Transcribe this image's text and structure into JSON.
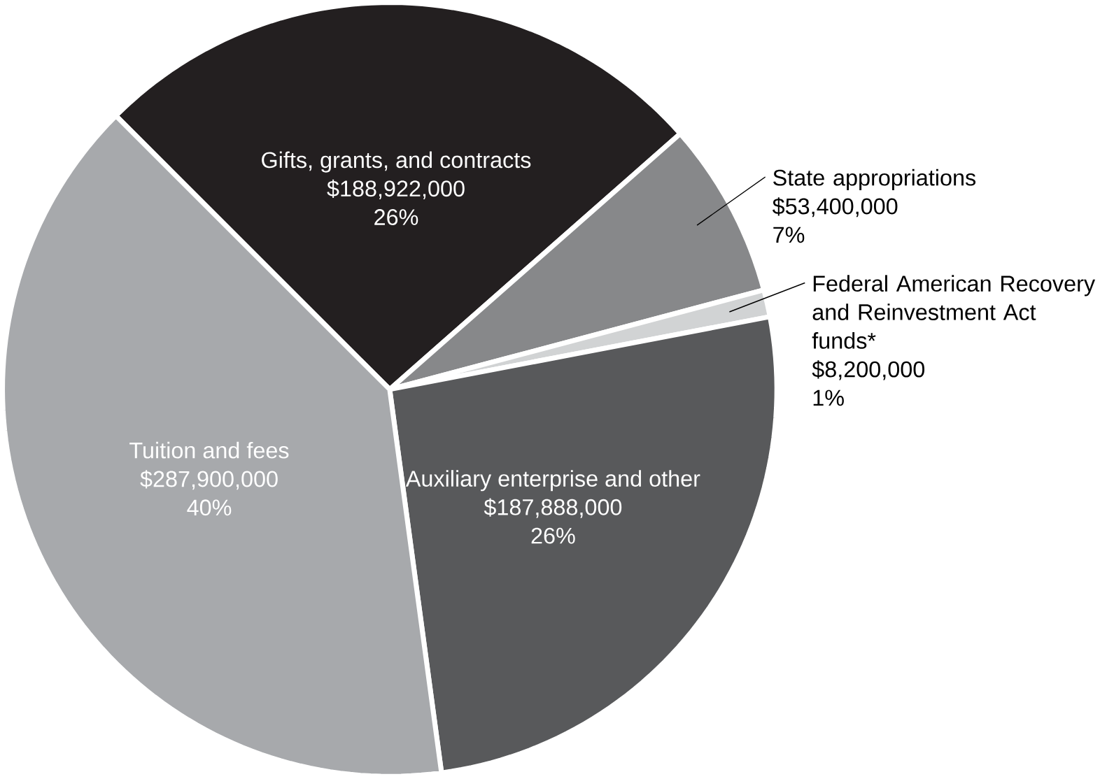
{
  "chart_data": {
    "type": "pie",
    "categories": [
      "Gifts, grants, and contracts",
      "State appropriations",
      "Federal American Recovery and Reinvestment Act funds*",
      "Auxiliary enterprise and other",
      "Tuition and fees"
    ],
    "values": [
      188922000,
      53400000,
      8200000,
      187888000,
      287900000
    ],
    "colors": [
      "#231f20",
      "#87888a",
      "#d1d3d4",
      "#58595b",
      "#a7a9ac"
    ],
    "value_labels": [
      "$188,922,000",
      "$53,400,000",
      "$8,200,000",
      "$187,888,000",
      "$287,900,000"
    ],
    "annotations": [
      "26%",
      "7%",
      "1%",
      "26%",
      "40%"
    ]
  }
}
